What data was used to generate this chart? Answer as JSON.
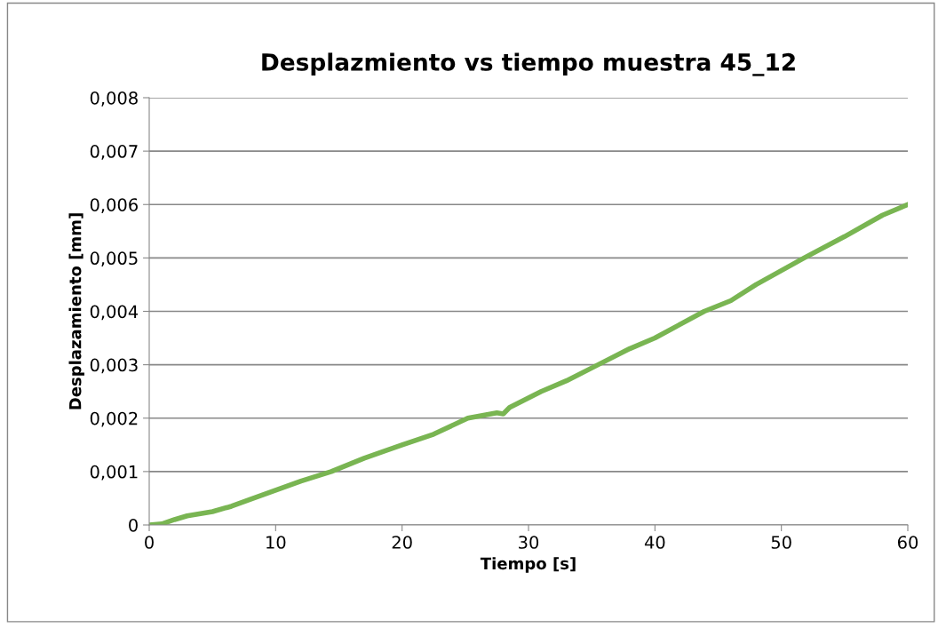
{
  "chart_data": {
    "type": "line",
    "title": "Desplazmiento vs tiempo muestra 45_12",
    "xlabel": "Tiempo [s]",
    "ylabel": "Desplazamiento [mm]",
    "x": [
      0,
      1,
      2,
      3,
      5,
      6.5,
      8,
      10,
      12,
      14.4,
      17,
      20,
      22.5,
      25.2,
      27.5,
      28,
      28.5,
      31,
      33,
      35.5,
      38,
      40,
      43.9,
      46,
      48,
      51.8,
      55,
      58,
      60
    ],
    "series": [
      {
        "color": "#79b552",
        "values": [
          0,
          2e-05,
          0.0001,
          0.00017,
          0.00025,
          0.00035,
          0.00048,
          0.00065,
          0.00082,
          0.001,
          0.00125,
          0.0015,
          0.0017,
          0.002,
          0.0021,
          0.00208,
          0.0022,
          0.0025,
          0.0027,
          0.003,
          0.0033,
          0.0035,
          0.004,
          0.0042,
          0.0045,
          0.005,
          0.0054,
          0.0058,
          0.006
        ]
      }
    ],
    "xlim": [
      0,
      60
    ],
    "xticks": [
      0,
      10,
      20,
      30,
      40,
      50,
      60
    ],
    "ylim": [
      0,
      0.008
    ],
    "yticks": [
      0,
      {
        "value": 0.001,
        "label": "0,001"
      },
      {
        "value": 0.002,
        "label": "0,002"
      },
      {
        "value": 0.003,
        "label": "0,003"
      },
      {
        "value": 0.004,
        "label": "0,004"
      },
      {
        "value": 0.005,
        "label": "0,005"
      },
      {
        "value": 0.006,
        "label": "0,006"
      },
      {
        "value": 0.007,
        "label": "0,007"
      },
      {
        "value": 0.008,
        "label": "0,008"
      }
    ],
    "grid": "y",
    "legend": false,
    "marker": "none",
    "line_style": "solid"
  }
}
